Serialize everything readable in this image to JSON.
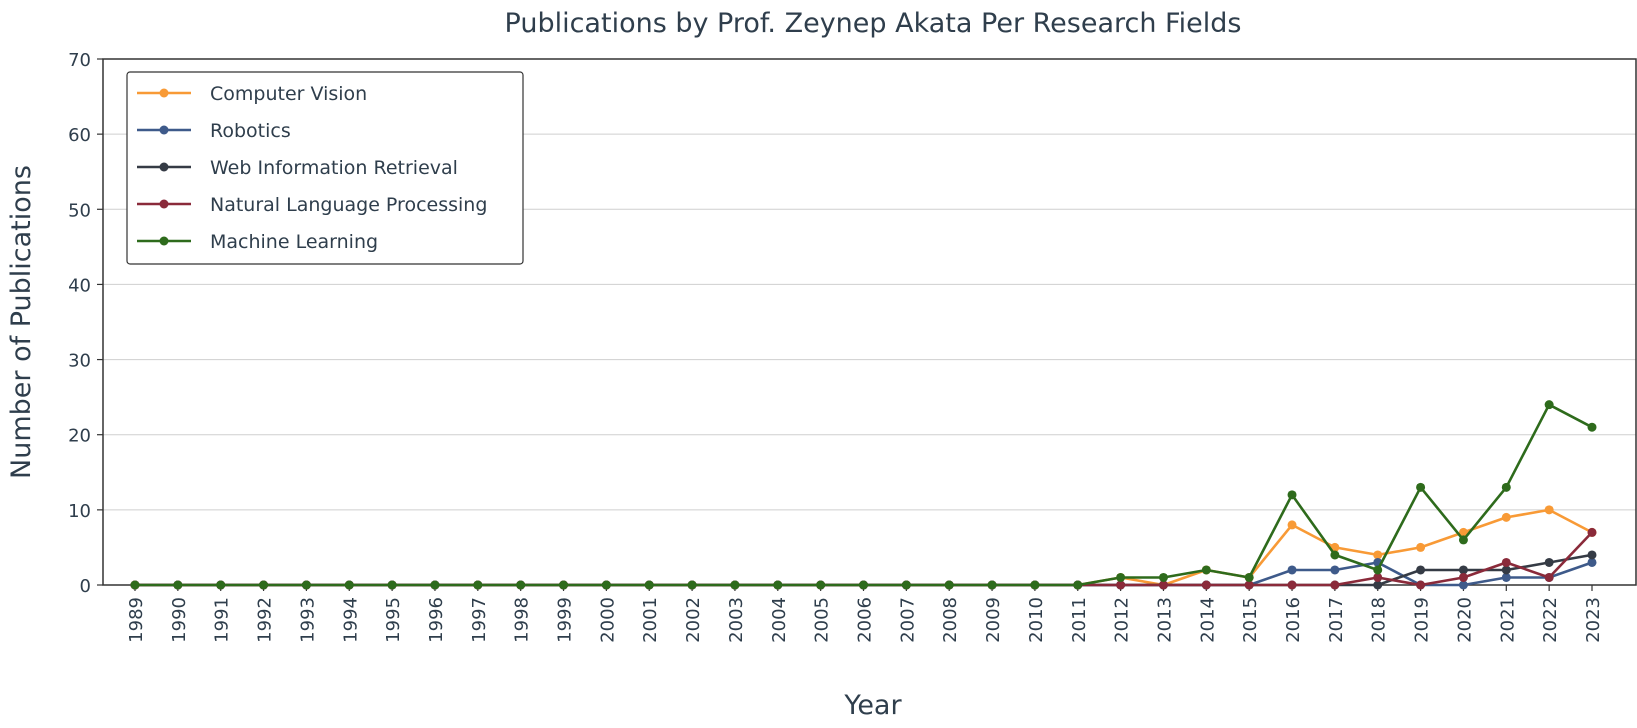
{
  "chart_data": {
    "type": "line",
    "title": "Publications by Prof. Zeynep Akata Per Research Fields",
    "xlabel": "Year",
    "ylabel": "Number of Publications",
    "x": [
      1989,
      1990,
      1991,
      1992,
      1993,
      1994,
      1995,
      1996,
      1997,
      1998,
      1999,
      2000,
      2001,
      2002,
      2003,
      2004,
      2005,
      2006,
      2007,
      2008,
      2009,
      2010,
      2011,
      2012,
      2013,
      2014,
      2015,
      2016,
      2017,
      2018,
      2019,
      2020,
      2021,
      2022,
      2023
    ],
    "ylim": [
      0,
      70
    ],
    "yticks": [
      0,
      10,
      20,
      30,
      40,
      50,
      60,
      70
    ],
    "grid": "horizontal",
    "legend_position": "top-left",
    "series": [
      {
        "name": "Computer Vision",
        "color": "#f89a36",
        "values": [
          0,
          0,
          0,
          0,
          0,
          0,
          0,
          0,
          0,
          0,
          0,
          0,
          0,
          0,
          0,
          0,
          0,
          0,
          0,
          0,
          0,
          0,
          0,
          1,
          0,
          2,
          1,
          8,
          5,
          4,
          5,
          7,
          9,
          10,
          7
        ]
      },
      {
        "name": "Robotics",
        "color": "#3e5a8a",
        "values": [
          0,
          0,
          0,
          0,
          0,
          0,
          0,
          0,
          0,
          0,
          0,
          0,
          0,
          0,
          0,
          0,
          0,
          0,
          0,
          0,
          0,
          0,
          0,
          0,
          0,
          0,
          0,
          2,
          2,
          3,
          0,
          0,
          1,
          1,
          3
        ]
      },
      {
        "name": "Web Information Retrieval",
        "color": "#353b45",
        "values": [
          0,
          0,
          0,
          0,
          0,
          0,
          0,
          0,
          0,
          0,
          0,
          0,
          0,
          0,
          0,
          0,
          0,
          0,
          0,
          0,
          0,
          0,
          0,
          0,
          0,
          0,
          0,
          0,
          0,
          0,
          2,
          2,
          2,
          3,
          4
        ]
      },
      {
        "name": "Natural Language Processing",
        "color": "#8a2a3a",
        "values": [
          0,
          0,
          0,
          0,
          0,
          0,
          0,
          0,
          0,
          0,
          0,
          0,
          0,
          0,
          0,
          0,
          0,
          0,
          0,
          0,
          0,
          0,
          0,
          0,
          0,
          0,
          0,
          0,
          0,
          1,
          0,
          1,
          3,
          1,
          7
        ]
      },
      {
        "name": "Machine Learning",
        "color": "#2e6b1c",
        "values": [
          0,
          0,
          0,
          0,
          0,
          0,
          0,
          0,
          0,
          0,
          0,
          0,
          0,
          0,
          0,
          0,
          0,
          0,
          0,
          0,
          0,
          0,
          0,
          1,
          1,
          2,
          1,
          12,
          4,
          2,
          13,
          6,
          13,
          24,
          21
        ]
      }
    ]
  }
}
